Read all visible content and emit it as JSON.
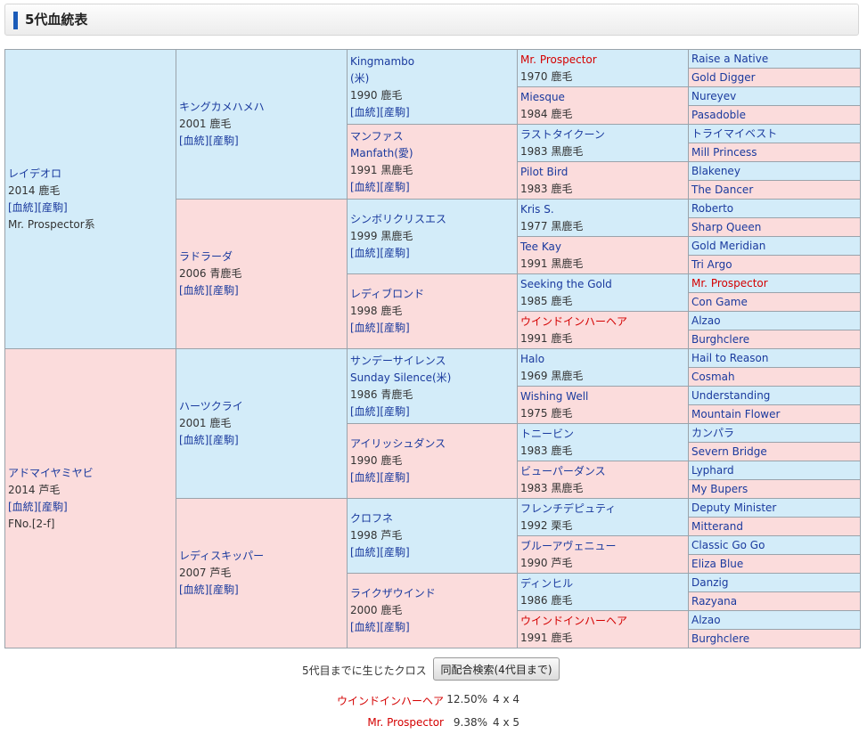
{
  "page_title": "5代血統表",
  "pedigree": {
    "sire": {
      "name": "レイデオロ",
      "info": "2014 鹿毛",
      "links": "[血統][産駒]",
      "extra": "Mr. Prospector系"
    },
    "dam": {
      "name": "アドマイヤミヤビ",
      "info": "2014 芦毛",
      "links": "[血統][産駒]",
      "extra": "FNo.[2-f]"
    },
    "g2": [
      {
        "name": "キングカメハメハ",
        "info": "2001 鹿毛",
        "links": "[血統][産駒]"
      },
      {
        "name": "ラドラーダ",
        "info": "2006 青鹿毛",
        "links": "[血統][産駒]"
      },
      {
        "name": "ハーツクライ",
        "info": "2001 鹿毛",
        "links": "[血統][産駒]"
      },
      {
        "name": "レディスキッパー",
        "info": "2007 芦毛",
        "links": "[血統][産駒]"
      }
    ],
    "g3": [
      {
        "name": "Kingmambo",
        "alt": "(米)",
        "info": "1990 鹿毛",
        "links": "[血統][産駒]"
      },
      {
        "name": "マンファス",
        "alt": "Manfath(愛)",
        "info": "1991 黒鹿毛",
        "links": "[血統][産駒]"
      },
      {
        "name": "シンボリクリスエス",
        "info": "1999 黒鹿毛",
        "links": "[血統][産駒]"
      },
      {
        "name": "レディブロンド",
        "info": "1998 鹿毛",
        "links": "[血統][産駒]"
      },
      {
        "name": "サンデーサイレンス",
        "alt": "Sunday Silence(米)",
        "info": "1986 青鹿毛",
        "links": "[血統][産駒]"
      },
      {
        "name": "アイリッシュダンス",
        "info": "1990 鹿毛",
        "links": "[血統][産駒]"
      },
      {
        "name": "クロフネ",
        "info": "1998 芦毛",
        "links": "[血統][産駒]"
      },
      {
        "name": "ライクザウインド",
        "info": "2000 鹿毛",
        "links": "[血統][産駒]"
      }
    ],
    "g4": [
      {
        "name": "Mr. Prospector",
        "info": "1970 鹿毛",
        "highlight": true
      },
      {
        "name": "Miesque",
        "info": "1984 鹿毛"
      },
      {
        "name": "ラストタイクーン",
        "info": "1983 黒鹿毛"
      },
      {
        "name": "Pilot Bird",
        "info": "1983 鹿毛"
      },
      {
        "name": "Kris S.",
        "info": "1977 黒鹿毛"
      },
      {
        "name": "Tee Kay",
        "info": "1991 黒鹿毛"
      },
      {
        "name": "Seeking the Gold",
        "info": "1985 鹿毛"
      },
      {
        "name": "ウインドインハーヘア",
        "info": "1991 鹿毛",
        "highlight": true
      },
      {
        "name": "Halo",
        "info": "1969 黒鹿毛"
      },
      {
        "name": "Wishing Well",
        "info": "1975 鹿毛"
      },
      {
        "name": "トニービン",
        "info": "1983 鹿毛"
      },
      {
        "name": "ビューパーダンス",
        "info": "1983 黒鹿毛"
      },
      {
        "name": "フレンチデピュティ",
        "info": "1992 栗毛"
      },
      {
        "name": "ブルーアヴェニュー",
        "info": "1990 芦毛"
      },
      {
        "name": "ディンヒル",
        "info": "1986 鹿毛"
      },
      {
        "name": "ウインドインハーヘア",
        "info": "1991 鹿毛",
        "highlight": true
      }
    ],
    "g5": [
      {
        "name": "Raise a Native"
      },
      {
        "name": "Gold Digger"
      },
      {
        "name": "Nureyev"
      },
      {
        "name": "Pasadoble"
      },
      {
        "name": "トライマイベスト"
      },
      {
        "name": "Mill Princess"
      },
      {
        "name": "Blakeney"
      },
      {
        "name": "The Dancer"
      },
      {
        "name": "Roberto"
      },
      {
        "name": "Sharp Queen"
      },
      {
        "name": "Gold Meridian"
      },
      {
        "name": "Tri Argo"
      },
      {
        "name": "Mr. Prospector",
        "highlight": true
      },
      {
        "name": "Con Game"
      },
      {
        "name": "Alzao"
      },
      {
        "name": "Burghclere"
      },
      {
        "name": "Hail to Reason"
      },
      {
        "name": "Cosmah"
      },
      {
        "name": "Understanding"
      },
      {
        "name": "Mountain Flower"
      },
      {
        "name": "カンパラ"
      },
      {
        "name": "Severn Bridge"
      },
      {
        "name": "Lyphard"
      },
      {
        "name": "My Bupers"
      },
      {
        "name": "Deputy Minister"
      },
      {
        "name": "Mitterand"
      },
      {
        "name": "Classic Go Go"
      },
      {
        "name": "Eliza Blue"
      },
      {
        "name": "Danzig"
      },
      {
        "name": "Razyana"
      },
      {
        "name": "Alzao"
      },
      {
        "name": "Burghclere"
      }
    ]
  },
  "crosses": {
    "label": "5代目までに生じたクロス",
    "button": "同配合検索(4代目まで)",
    "items": [
      {
        "name": "ウインドインハーヘア",
        "percent": "12.50%",
        "gens": "4 x 4"
      },
      {
        "name": "Mr. Prospector",
        "percent": "9.38%",
        "gens": "4 x 5"
      }
    ]
  },
  "colors": {
    "male_bg": "#d3ecf9",
    "female_bg": "#fbdcdc",
    "link": "#1a3a9e",
    "highlight": "#d40000",
    "accent": "#1a5bb8"
  }
}
